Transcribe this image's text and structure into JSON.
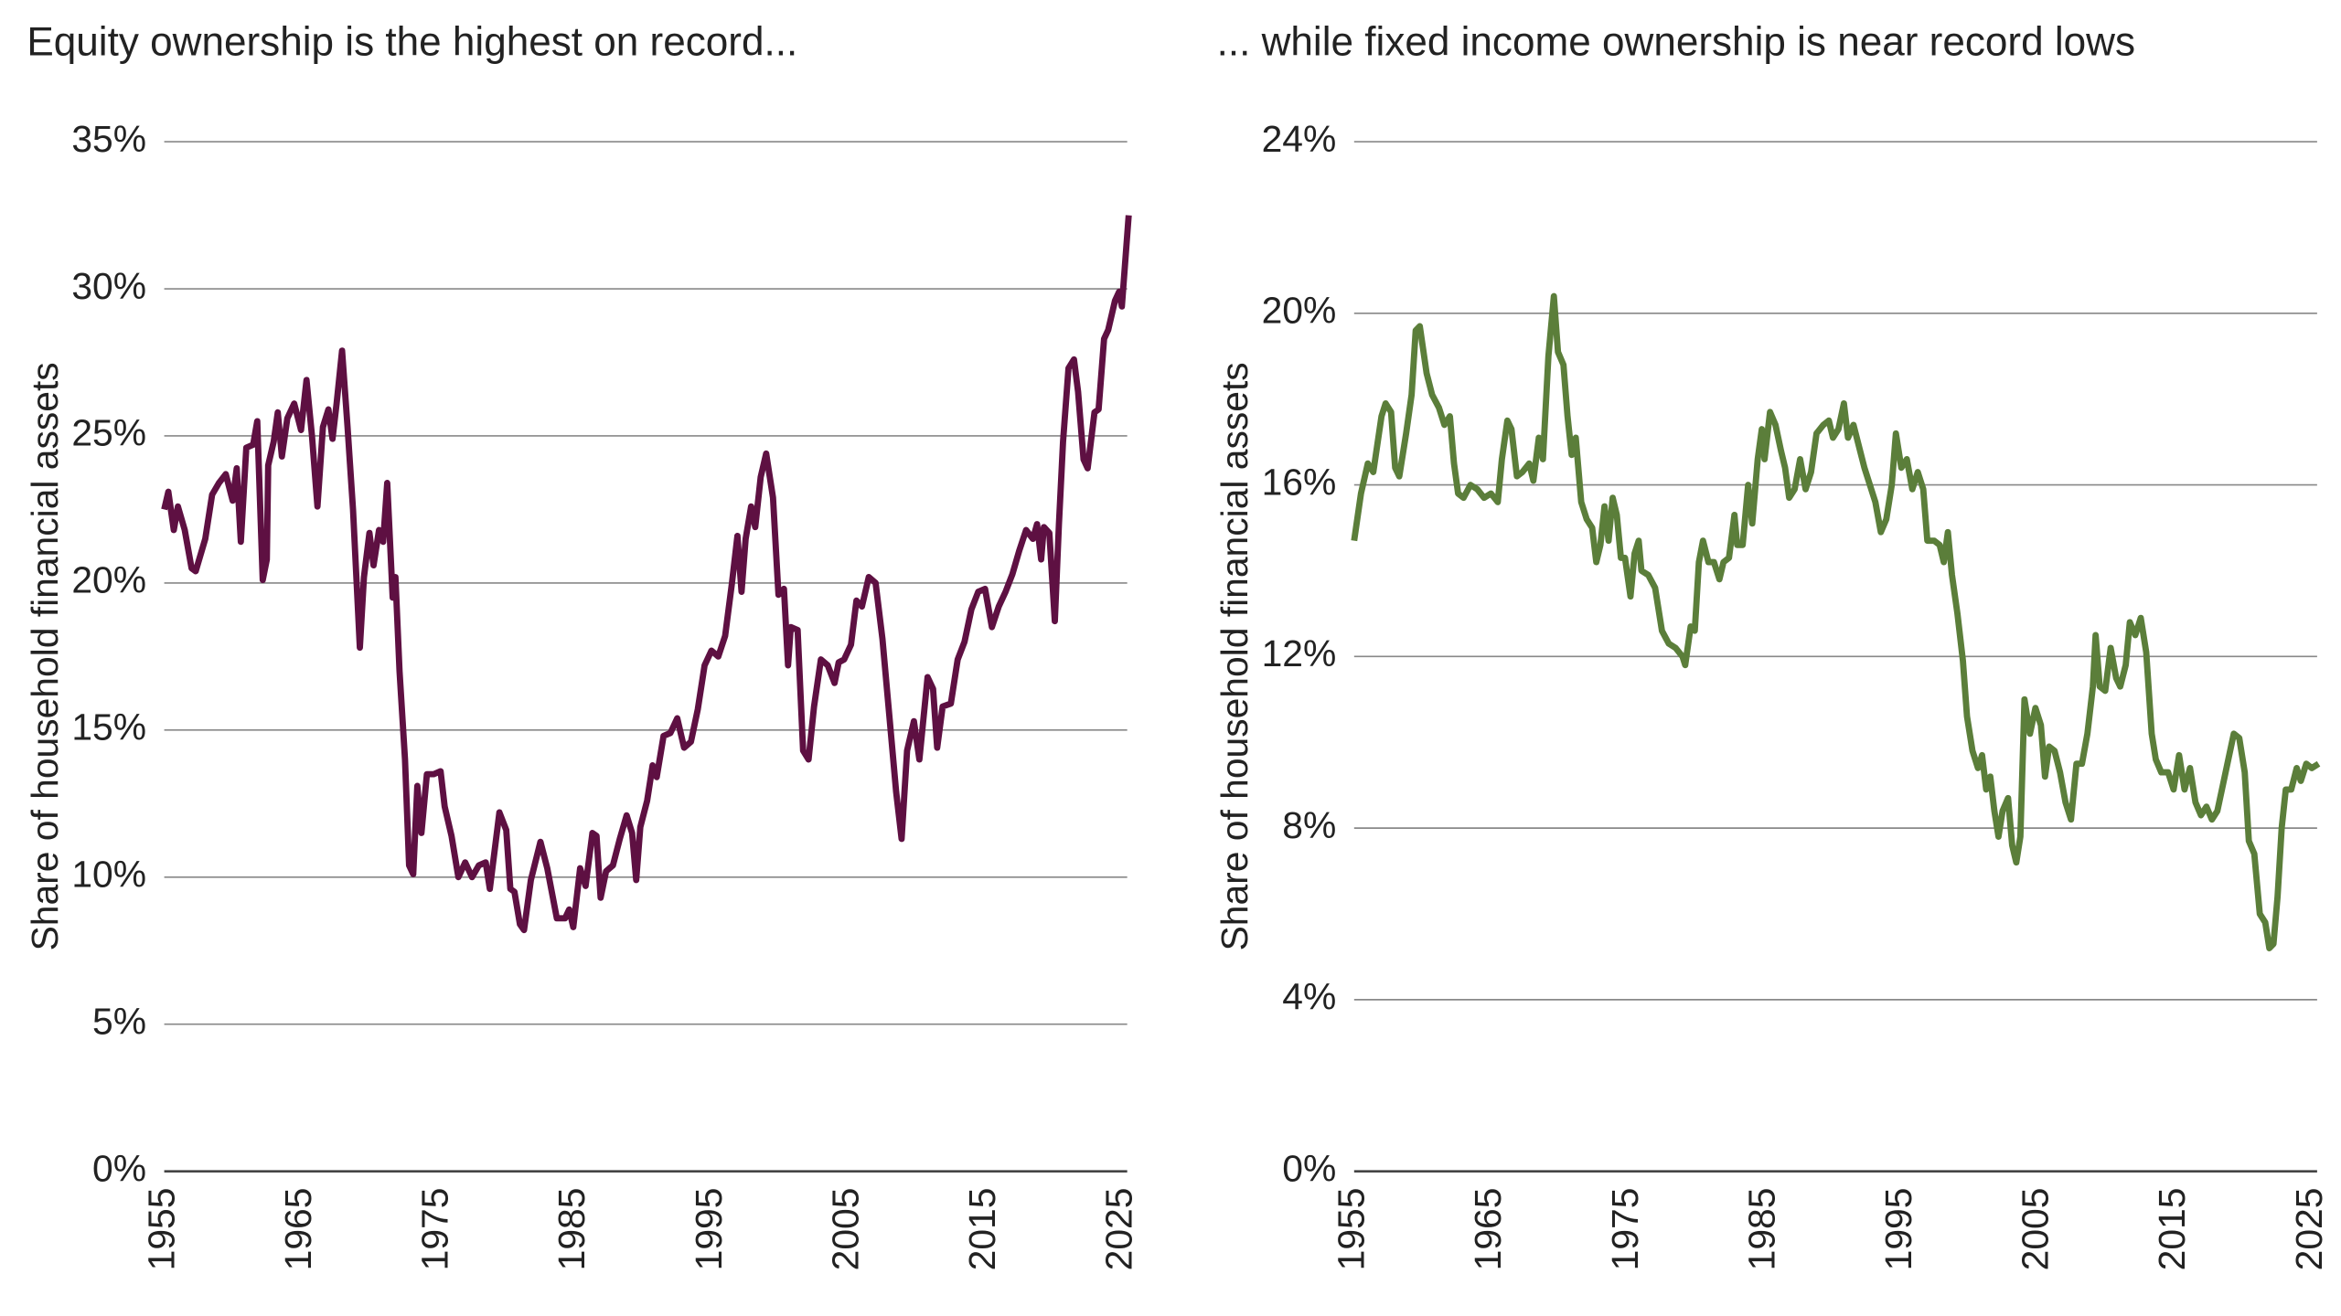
{
  "chart_data": [
    {
      "type": "line",
      "title": "Equity ownership is the highest on record...",
      "ylabel": "Share of household financial assets",
      "color": "#5e1042",
      "x": [
        1955,
        1955.3,
        1955.7,
        1956,
        1956.5,
        1957,
        1957.3,
        1958,
        1958.5,
        1959,
        1959.5,
        1960,
        1960.3,
        1960.6,
        1961,
        1961.5,
        1961.8,
        1962.2,
        1962.5,
        1962.6,
        1963,
        1963.3,
        1963.6,
        1964,
        1964.5,
        1965,
        1965.4,
        1965.8,
        1966.2,
        1966.6,
        1967,
        1967.3,
        1967.6,
        1968,
        1968.4,
        1968.8,
        1969.3,
        1969.6,
        1970,
        1970.3,
        1970.7,
        1971,
        1971.3,
        1971.7,
        1971.9,
        1972.2,
        1972.6,
        1972.9,
        1973.2,
        1973.5,
        1973.8,
        1974.2,
        1974.7,
        1975.2,
        1975.5,
        1976,
        1976.5,
        1977,
        1977.5,
        1978,
        1978.5,
        1978.8,
        1979.5,
        1980,
        1980.3,
        1980.6,
        1981,
        1981.3,
        1981.8,
        1982.5,
        1983,
        1983.7,
        1984.3,
        1984.6,
        1984.9,
        1985.4,
        1985.8,
        1986.3,
        1986.6,
        1986.9,
        1987.3,
        1987.8,
        1988.3,
        1988.8,
        1989.2,
        1989.5,
        1989.8,
        1990.3,
        1990.7,
        1991,
        1991.5,
        1992,
        1992.5,
        1993,
        1993.5,
        1994,
        1994.5,
        1995,
        1995.5,
        1996,
        1996.5,
        1996.9,
        1997.2,
        1997.5,
        1997.9,
        1998.2,
        1998.6,
        1999,
        1999.5,
        1999.9,
        2000.3,
        2000.6,
        2000.8,
        2001.3,
        2001.7,
        2002.1,
        2002.5,
        2003,
        2003.5,
        2004,
        2004.3,
        2004.7,
        2005.2,
        2005.6,
        2006,
        2006.5,
        2007,
        2007.5,
        2008,
        2008.5,
        2008.9,
        2009.3,
        2009.8,
        2010.2,
        2010.5,
        2010.8,
        2011.2,
        2011.5,
        2011.9,
        2012.5,
        2013,
        2013.5,
        2014,
        2014.5,
        2015,
        2015.5,
        2016,
        2016.5,
        2017,
        2017.5,
        2018,
        2018.5,
        2018.8,
        2019.1,
        2019.3,
        2019.7,
        2020.1,
        2020.4,
        2020.7,
        2021.1,
        2021.5,
        2021.8,
        2022.2,
        2022.5,
        2023,
        2023.3,
        2023.7,
        2024,
        2024.5,
        2024.8,
        2025,
        2025.5
      ],
      "values": [
        22.5,
        23.1,
        21.8,
        22.6,
        21.8,
        20.5,
        20.4,
        21.5,
        23,
        23.4,
        23.7,
        22.8,
        23.9,
        21.4,
        24.6,
        24.7,
        25.5,
        20.1,
        20.8,
        24,
        24.8,
        25.8,
        24.3,
        25.6,
        26.1,
        25.2,
        26.9,
        25,
        22.6,
        25.3,
        25.9,
        24.9,
        26.1,
        27.9,
        25.3,
        22.5,
        17.8,
        20.2,
        21.7,
        20.6,
        21.8,
        21.4,
        23.4,
        19.5,
        20.2,
        17,
        14,
        10.4,
        10.1,
        13.1,
        11.5,
        13.5,
        13.5,
        13.6,
        12.4,
        11.4,
        10,
        10.5,
        10,
        10.4,
        10.5,
        9.6,
        12.2,
        11.6,
        9.6,
        9.5,
        8.4,
        8.2,
        9.9,
        11.2,
        10.3,
        8.6,
        8.6,
        8.9,
        8.3,
        10.3,
        9.7,
        11.5,
        11.4,
        9.3,
        10.2,
        10.4,
        11.3,
        12.1,
        11.5,
        9.9,
        11.7,
        12.6,
        13.8,
        13.4,
        14.8,
        14.9,
        15.4,
        14.4,
        14.6,
        15.7,
        17.2,
        17.7,
        17.5,
        18.2,
        20,
        21.6,
        19.7,
        21.5,
        22.6,
        21.9,
        23.6,
        24.4,
        22.9,
        19.6,
        19.8,
        17.2,
        18.5,
        18.4,
        14.3,
        14,
        15.8,
        17.4,
        17.2,
        16.6,
        17.3,
        17.4,
        17.9,
        19.4,
        19.2,
        20.2,
        20,
        18.1,
        15.5,
        12.9,
        11.3,
        14.3,
        15.3,
        14,
        15.4,
        16.8,
        16.4,
        14.4,
        15.8,
        15.9,
        17.4,
        18,
        19.1,
        19.7,
        19.8,
        18.5,
        19.2,
        19.7,
        20.3,
        21.1,
        21.8,
        21.5,
        22,
        20.8,
        21.9,
        21.7,
        18.7,
        22,
        24.8,
        27.3,
        27.6,
        26.5,
        24.2,
        23.9,
        25.8,
        25.9,
        28.3,
        28.6,
        29.6,
        29.9,
        29.4,
        32.5
      ],
      "xlim": [
        1955,
        2025.5
      ],
      "xticks": [
        1955,
        1965,
        1975,
        1985,
        1995,
        2005,
        2015,
        2025
      ],
      "ylim": [
        0,
        35
      ],
      "yticks": [
        {
          "value": 0,
          "label": "0%"
        },
        {
          "value": 5,
          "label": "5%"
        },
        {
          "value": 10,
          "label": "10%"
        },
        {
          "value": 15,
          "label": "15%"
        },
        {
          "value": 20,
          "label": "20%"
        },
        {
          "value": 25,
          "label": "25%"
        },
        {
          "value": 30,
          "label": "30%"
        },
        {
          "value": 35,
          "label": "35%"
        }
      ],
      "grid": true
    },
    {
      "type": "line",
      "title": "... while fixed income ownership is near record lows",
      "ylabel": "Share of household financial assets",
      "color": "#5b7e3a",
      "x": [
        1955,
        1955.5,
        1956,
        1956.4,
        1957,
        1957.3,
        1957.7,
        1958,
        1958.3,
        1958.8,
        1959.2,
        1959.5,
        1959.8,
        1960.3,
        1960.7,
        1961.2,
        1961.6,
        1962,
        1962.3,
        1962.6,
        1963,
        1963.5,
        1964,
        1964.5,
        1965,
        1965.5,
        1965.8,
        1966.2,
        1966.5,
        1966.9,
        1967.3,
        1967.8,
        1968.1,
        1968.5,
        1968.8,
        1969.2,
        1969.6,
        1969.9,
        1970.3,
        1970.6,
        1970.9,
        1971.2,
        1971.6,
        1972,
        1972.4,
        1972.7,
        1973,
        1973.3,
        1973.6,
        1973.9,
        1974.2,
        1974.5,
        1974.8,
        1975.2,
        1975.5,
        1975.8,
        1976,
        1976.5,
        1977,
        1977.5,
        1978,
        1978.5,
        1979,
        1979.2,
        1979.6,
        1979.9,
        1980.2,
        1980.5,
        1980.9,
        1981.3,
        1981.7,
        1982,
        1982.4,
        1982.8,
        1983,
        1983.4,
        1983.8,
        1984.1,
        1984.5,
        1984.8,
        1985,
        1985.4,
        1985.8,
        1986.2,
        1986.5,
        1986.8,
        1987.2,
        1987.6,
        1988,
        1988.4,
        1988.8,
        1989.3,
        1989.7,
        1990,
        1990.4,
        1990.8,
        1991.1,
        1991.5,
        1991.9,
        1992.3,
        1992.7,
        1993.1,
        1993.5,
        1993.9,
        1994.3,
        1994.6,
        1995,
        1995.4,
        1995.8,
        1996.2,
        1996.6,
        1996.9,
        1997.4,
        1997.8,
        1998.1,
        1998.4,
        1998.7,
        1999.1,
        1999.5,
        1999.8,
        2000.2,
        2000.6,
        2000.9,
        2001.2,
        2001.5,
        2001.8,
        2002.1,
        2002.4,
        2002.8,
        2003.1,
        2003.4,
        2003.7,
        2004,
        2004.4,
        2004.8,
        2005.2,
        2005.5,
        2005.8,
        2006.2,
        2006.6,
        2007,
        2007.4,
        2007.8,
        2008.2,
        2008.6,
        2009,
        2009.2,
        2009.5,
        2009.9,
        2010.3,
        2010.7,
        2011,
        2011.4,
        2011.7,
        2012.1,
        2012.5,
        2012.9,
        2013.3,
        2013.6,
        2014,
        2014.5,
        2014.9,
        2015.3,
        2015.7,
        2016.1,
        2016.5,
        2016.9,
        2017.3,
        2017.7,
        2018.1,
        2018.5,
        2018.9,
        2019.3,
        2019.7,
        2020.1,
        2020.4,
        2020.8,
        2021.2,
        2021.6,
        2021.9,
        2022.2,
        2022.5,
        2022.8,
        2023.1,
        2023.5,
        2023.9,
        2024.2,
        2024.6,
        2025,
        2025.5
      ],
      "values": [
        14.7,
        15.8,
        16.5,
        16.3,
        17.6,
        17.9,
        17.7,
        16.4,
        16.2,
        17.2,
        18.1,
        19.6,
        19.7,
        18.6,
        18.1,
        17.8,
        17.4,
        17.6,
        16.5,
        15.8,
        15.7,
        16,
        15.9,
        15.7,
        15.8,
        15.6,
        16.6,
        17.5,
        17.3,
        16.2,
        16.3,
        16.5,
        16.1,
        17.1,
        16.6,
        19,
        20.4,
        19.1,
        18.8,
        17.6,
        16.7,
        17.1,
        15.6,
        15.2,
        15,
        14.2,
        14.6,
        15.5,
        14.7,
        15.7,
        15.3,
        14.3,
        14.3,
        13.4,
        14.4,
        14.7,
        14,
        13.9,
        13.6,
        12.6,
        12.3,
        12.2,
        12,
        11.8,
        12.7,
        12.6,
        14.2,
        14.7,
        14.2,
        14.2,
        13.8,
        14.2,
        14.3,
        15.3,
        14.6,
        14.6,
        16,
        15.1,
        16.6,
        17.3,
        16.6,
        17.7,
        17.4,
        16.8,
        16.4,
        15.7,
        15.9,
        16.6,
        15.9,
        16.3,
        17.2,
        17.4,
        17.5,
        17.1,
        17.3,
        17.9,
        17.1,
        17.4,
        16.9,
        16.4,
        16,
        15.6,
        14.9,
        15.2,
        16,
        17.2,
        16.4,
        16.6,
        15.9,
        16.3,
        15.9,
        14.7,
        14.7,
        14.6,
        14.2,
        14.9,
        13.9,
        13,
        11.9,
        10.6,
        9.8,
        9.4,
        9.7,
        8.9,
        9.2,
        8.4,
        7.8,
        8.4,
        8.7,
        7.6,
        7.2,
        7.8,
        11,
        10.2,
        10.8,
        10.4,
        9.2,
        9.9,
        9.8,
        9.3,
        8.6,
        8.2,
        9.5,
        9.5,
        10.2,
        11.3,
        12.5,
        11.3,
        11.2,
        12.2,
        11.5,
        11.3,
        11.8,
        12.8,
        12.5,
        12.9,
        12.1,
        10.2,
        9.6,
        9.3,
        9.3,
        8.9,
        9.7,
        8.9,
        9.4,
        8.6,
        8.3,
        8.5,
        8.2,
        8.4,
        9,
        9.6,
        10.2,
        10.1,
        9.3,
        7.7,
        7.4,
        6,
        5.8,
        5.2,
        5.3,
        6.4,
        8,
        8.9,
        8.9,
        9.4,
        9.1,
        9.5,
        9.4,
        9.5
      ],
      "xlim": [
        1955,
        2025.5
      ],
      "xticks": [
        1955,
        1965,
        1975,
        1985,
        1995,
        2005,
        2015,
        2025
      ],
      "ylim": [
        0,
        24
      ],
      "yticks": [
        {
          "value": 0,
          "label": "0%"
        },
        {
          "value": 4,
          "label": "4%"
        },
        {
          "value": 8,
          "label": "8%"
        },
        {
          "value": 12,
          "label": "12%"
        },
        {
          "value": 16,
          "label": "16%"
        },
        {
          "value": 20,
          "label": "20%"
        },
        {
          "value": 24,
          "label": "24%"
        }
      ],
      "grid": true
    }
  ]
}
